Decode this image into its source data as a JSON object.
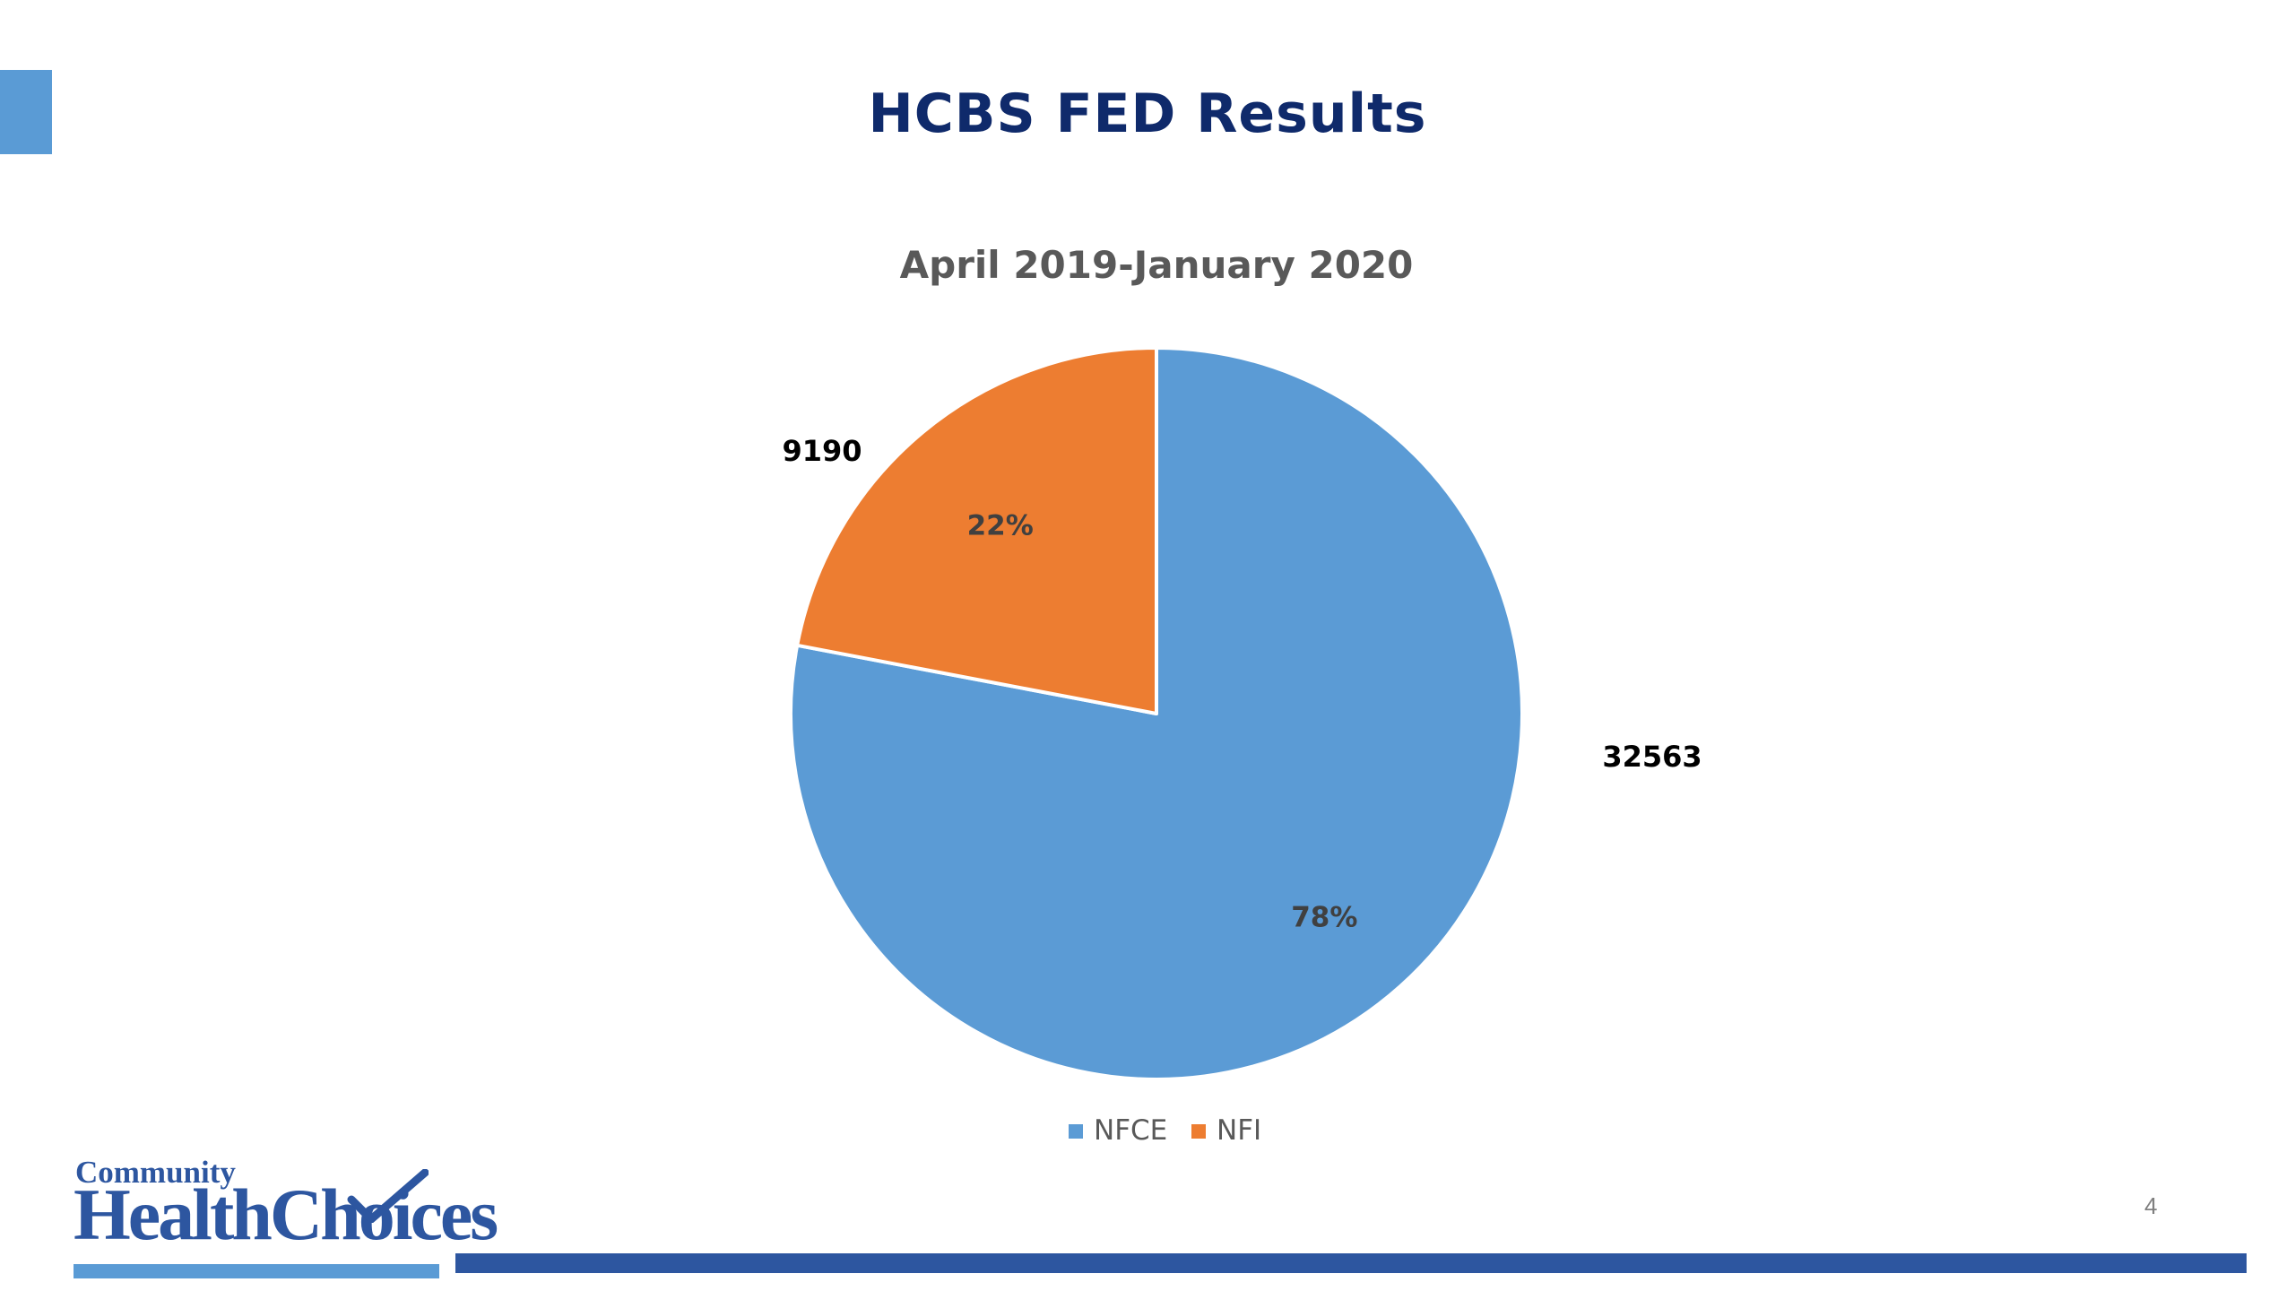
{
  "slide": {
    "title": "HCBS FED Results",
    "page_number": "4"
  },
  "logo": {
    "line1": "Community",
    "line2": "HealthChoices"
  },
  "colors": {
    "nfce": "#5b9bd5",
    "nfi": "#ed7d31",
    "title": "#0f2a6b",
    "accent": "#5a9bd5",
    "footer_bar": "#2d56a0"
  },
  "chart_data": {
    "type": "pie",
    "title": "April 2019-January 2020",
    "categories": [
      "NFCE",
      "NFI"
    ],
    "values": [
      32563,
      9190
    ],
    "percent_labels": [
      "78%",
      "22%"
    ],
    "value_labels": [
      "32563",
      "9190"
    ],
    "legend": {
      "position": "bottom",
      "entries": [
        "NFCE",
        "NFI"
      ]
    },
    "start_angle_deg": 0,
    "direction": "clockwise"
  }
}
